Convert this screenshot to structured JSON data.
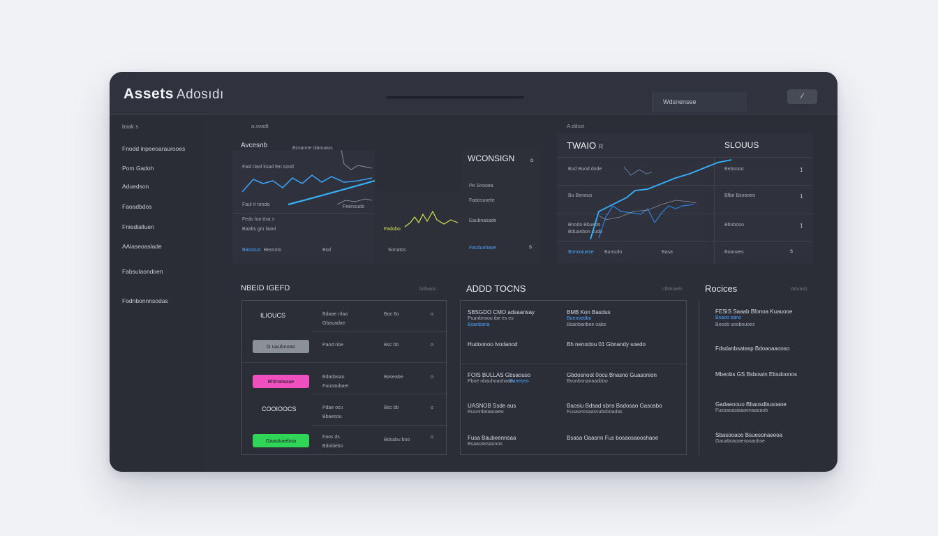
{
  "app": {
    "title": "Assets",
    "subtitle": "Adosıdı"
  },
  "topbar": {
    "search_text": "Wdsnensee",
    "action_icon": "edit-icon",
    "action_glyph": "⁄"
  },
  "sidebar": {
    "heading": "bsak s",
    "items": [
      "Fnodd inpeeoaraurooes",
      "Pom Gadoh",
      "Aduedson",
      "Faoadbdos",
      "Fniedlalluen",
      "AAlaseoaslade",
      "Fabsulaondoen",
      "Fodnbonnnsodas"
    ]
  },
  "overview": {
    "label": "a.soadt",
    "panel1": {
      "title": "Avcesnb",
      "subtitle": "Bcsanne olanuaus",
      "rows": [
        "Fasl rlaol ksad fen sood",
        "Faul rl ronda",
        "Fedo loo ttsa s",
        "Baabs gm laaol"
      ],
      "axis": [
        "Basssus",
        "Bessmo",
        "Bsd",
        "Feensudo"
      ]
    },
    "panel2": {
      "title": "WCONSIGN",
      "rows": [
        "Pe Snooea",
        "Fadosuoele",
        "Eaubnasade",
        "Facdunhaoe"
      ],
      "mini_label": "Sonatos",
      "yellow_label": "Fadobo",
      "marker": "o",
      "marker2": "s"
    },
    "panel3": {
      "label": "A.ddsst",
      "title": "TWAIO",
      "title_suffix": "R",
      "right_title": "SLOUUS",
      "rows": [
        "Bud Buod dode",
        "Bu Beneus",
        "Bnodo Bbuedo",
        "Bduanbon sudo"
      ],
      "right_rows": [
        "Bebsooo",
        "Bfbe Bsnooeo",
        "Bbnbooo",
        "Boanaes"
      ],
      "right_ticks": [
        "1",
        "1",
        "1",
        "s"
      ],
      "axis": [
        "Bonvoiuese",
        "Bunsolo",
        "Basa"
      ]
    }
  },
  "sections": {
    "left": {
      "title": "NBEID IGEFD",
      "meta": "bdlaaoc"
    },
    "middle": {
      "title": "ADDD TOCNS",
      "meta": "clblmaeb"
    },
    "right": {
      "title": "Rocices",
      "meta": "Aduasb"
    }
  },
  "assets_table": {
    "rows": [
      {
        "label": "ILIOUCS",
        "tag": "",
        "tag_color": "",
        "c1": "Bdaae rrlaa",
        "c1b": "Gbauadae",
        "c2": "Boc 6o",
        "c3": "o"
      },
      {
        "label": "",
        "tag": "G uaubnoao",
        "tag_color": "#8a9297",
        "c1": "Paod nbe",
        "c1b": "",
        "c2": "Bsc bb",
        "c3": "o"
      },
      {
        "label": "",
        "tag": "Bfdnalaaae",
        "tag_color": "#f04fc0",
        "c1": "Bdadasao",
        "c1b": "Fauoaubaer",
        "c2": "Baseabe",
        "c3": "o"
      },
      {
        "label": "COOIOOCS",
        "tag": "",
        "tag_color": "",
        "c1": "Pdae ocu",
        "c1b": "Bbaesou",
        "c2": "Bsc bb",
        "c3": "o"
      },
      {
        "label": "",
        "tag": "Gaaobaeboa",
        "tag_color": "#2fd556",
        "c1": "Faos ds",
        "c1b": "Bdobiebo",
        "c2": "Bdsabu boo",
        "c3": "o"
      }
    ]
  },
  "add_tokens": {
    "rows": [
      {
        "left": "SBSGDO CMO adsaansay",
        "left_sub": "Puanbnoou ibe es es",
        "left_blue": "Bsanbana",
        "right": "BMB Kon Basdus",
        "right_sub": "Bsanbanbee oabs",
        "right_blue": "Buensedbo"
      },
      {
        "left": "Hudoonoo lvodanod",
        "left_sub": "",
        "left_blue": "",
        "right": "Bh nenodou 01 Gbnandy soedo",
        "right_sub": "",
        "right_blue": ""
      },
      {
        "left": "FOIS BULLAS Gbsaouso",
        "left_sub": "Pboe nbauhoaohaoo",
        "left_blue": "Baneseo",
        "right": "Gbdosnoot 0ocu Bnasno Guasonion",
        "right_sub": "Bvunbonanaaddoo",
        "right_blue": ""
      },
      {
        "left": "UASNOB Ssde aus",
        "left_sub": "Ruunnbeaaoaeo",
        "left_blue": "",
        "right": "Baosiu Bdsad sbns Badosao Gasosbo",
        "right_sub": "Fuuaonssaassubsboadas",
        "right_blue": ""
      },
      {
        "left": "Fusa Baubeennsaa",
        "left_sub": "Bsaaoassaonos",
        "left_blue": "",
        "right": "Bsasa Oaasnn Fus bosaosaooshaoe",
        "right_sub": "",
        "right_blue": ""
      }
    ]
  },
  "rocices": {
    "rows": [
      {
        "title": "FESIS Saaab Bfonoa Kuauooe",
        "sub": "Bosob uoobouoes",
        "blue": "Bsaoo sano"
      },
      {
        "title": "Fdsdanbsatasp Bdoaoaaooso",
        "sub": "",
        "blue": ""
      },
      {
        "title": "Mbeobs GS Bsbowin Ebsdoonos",
        "sub": "",
        "blue": ""
      },
      {
        "title": "Gadaeoouo Bbaosdbusoaoe",
        "sub": "Fusoaoasiaaoenaaoaob",
        "blue": ""
      },
      {
        "title": "Sbasooaoo Bsuesonaeeoa",
        "sub": "Gauaboaoaesouaobse",
        "blue": ""
      }
    ]
  },
  "colors": {
    "accent_blue": "#3fa7ff",
    "line_blue": "#2e7fe0",
    "yellow": "#d8e356",
    "pink": "#f04fc0",
    "green": "#2fd556"
  }
}
